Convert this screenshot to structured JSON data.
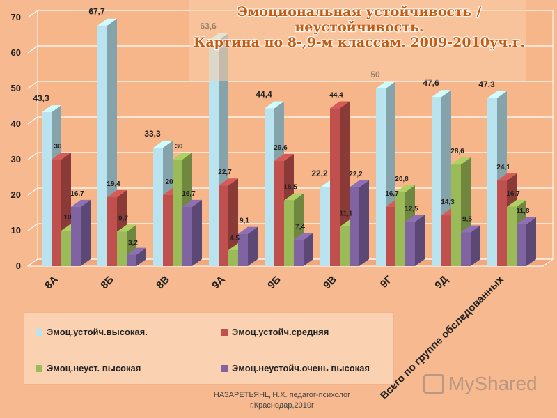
{
  "chart_data": {
    "type": "bar",
    "title_line1": "Эмоциональная устойчивость /неустойчивость.",
    "title_line2": "Картина по 8-,9-м классам. 2009-2010уч.г.",
    "ylim": [
      0,
      70
    ],
    "yticks": [
      0,
      10,
      20,
      30,
      40,
      50,
      60,
      70
    ],
    "categories": [
      "8А",
      "8Б",
      "8В",
      "9А",
      "9Б",
      "9В",
      "9Г",
      "9Д",
      "Всего по группе обследованных"
    ],
    "series": [
      {
        "name": "Эмоц.устойч.высокая.",
        "color": "#b9e3ee",
        "values": [
          43.3,
          67.7,
          33.3,
          63.6,
          44.4,
          22.2,
          50,
          47.6,
          47.3
        ],
        "labels": [
          "43,3",
          "67,7",
          "33,3",
          "63,6",
          "44,4",
          "22,2",
          "50",
          "47,6",
          "47,3"
        ]
      },
      {
        "name": "Эмоц.устойч.средняя",
        "color": "#c0504d",
        "values": [
          30,
          19.4,
          20,
          22.7,
          29.6,
          44.4,
          16.7,
          14.3,
          24.1
        ],
        "labels": [
          "30",
          "19,4",
          "20",
          "22,7",
          "29,6",
          "44,4",
          "16,7",
          "14,3",
          "24,1"
        ]
      },
      {
        "name": "Эмоц.неуст. высокая",
        "color": "#9bbb59",
        "values": [
          10,
          9.7,
          30,
          4.5,
          18.5,
          11.1,
          20.8,
          28.6,
          16.7
        ],
        "labels": [
          "10",
          "9,7",
          "30",
          "4,5",
          "18,5",
          "11,1",
          "20,8",
          "28,6",
          "16,7"
        ]
      },
      {
        "name": "Эмоц.неустойч.очень высокая",
        "color": "#8064a2",
        "values": [
          16.7,
          3.2,
          16.7,
          9.1,
          7.4,
          22.2,
          12.5,
          9.5,
          11.8
        ],
        "labels": [
          "16,7",
          "3,2",
          "16,7",
          "9,1",
          "7,4",
          "22,2",
          "12,5",
          "9,5",
          "11,8"
        ]
      }
    ],
    "legend": {
      "position": "bottom-left"
    }
  },
  "footer": {
    "author_line1": "НАЗАРЕТЬЯНЦ Н.Х. педагог-психолог",
    "author_line2": "г.Краснодар,2010г"
  },
  "watermark": {
    "text": "MyShared",
    "icon": "presentation-board-icon"
  },
  "colors": {
    "background": "#f7b98f",
    "title": "#c55a11"
  }
}
